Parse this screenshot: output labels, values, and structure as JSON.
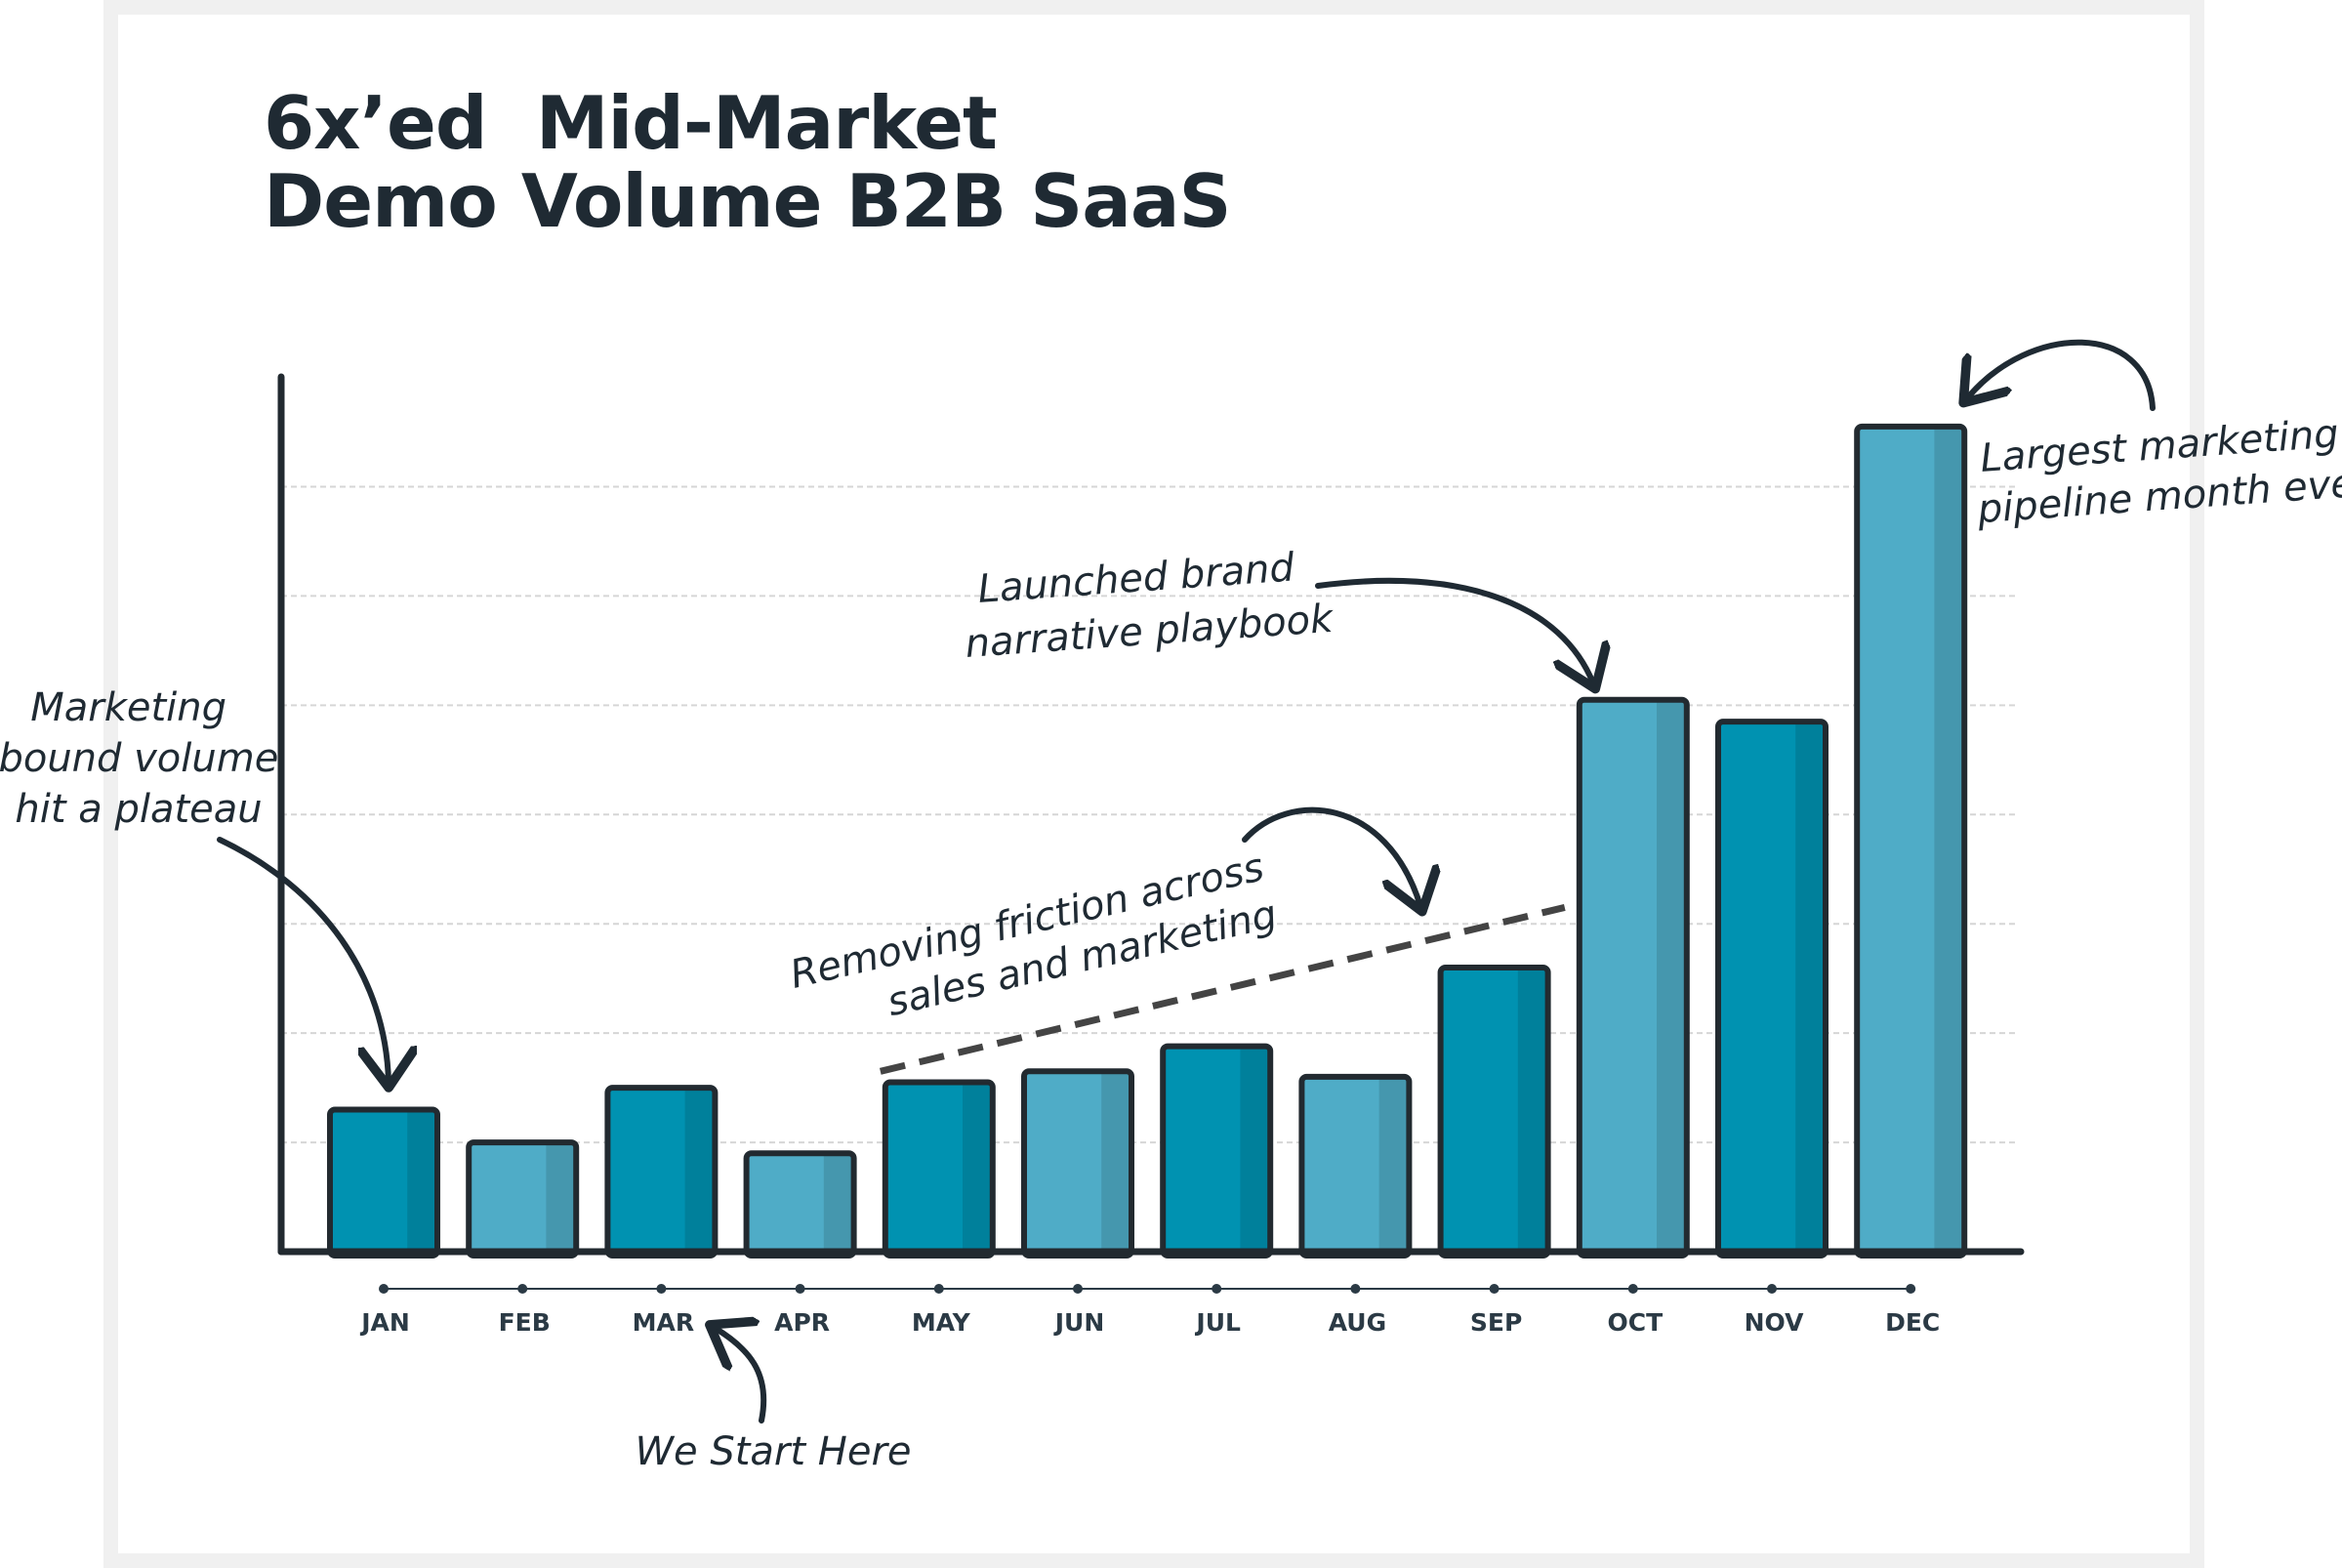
{
  "chart_data": {
    "type": "bar",
    "title": "6x’ed  Mid-Market\nDemo Volume B2B SaaS",
    "title_lines": [
      "6x’ed  Mid-Market",
      "Demo Volume B2B SaaS"
    ],
    "categories": [
      "JAN",
      "FEB",
      "MAR",
      "APR",
      "MAY",
      "JUN",
      "JUL",
      "AUG",
      "SEP",
      "OCT",
      "NOV",
      "DEC"
    ],
    "values": [
      1.3,
      1.0,
      1.5,
      0.9,
      1.55,
      1.65,
      1.88,
      1.6,
      2.6,
      5.05,
      4.85,
      7.55
    ],
    "ylim": [
      0,
      8
    ],
    "grid": true,
    "bar_colors": [
      "#0092b1",
      "#4facc7",
      "#0092b1",
      "#4facc7",
      "#0092b1",
      "#4facc7",
      "#0092b1",
      "#4facc7",
      "#0092b1",
      "#4facc7",
      "#0092b1",
      "#4facc7"
    ],
    "colors": {
      "dark_bar": "#0092b1",
      "light_bar": "#4facc7",
      "outline": "#222a30",
      "grid": "#d6d6d6",
      "dashed_trend": "#444444"
    },
    "annotations": [
      {
        "text_lines": [
          "Marketing",
          "inbound volume",
          "hit a plateau"
        ],
        "target": "JAN"
      },
      {
        "text_lines": [
          "We Start Here"
        ],
        "target": "MAR"
      },
      {
        "text_lines": [
          "Removing friction across",
          "sales and marketing"
        ],
        "target": "MAY-SEP trend"
      },
      {
        "text_lines": [
          "Launched brand",
          "narrative playbook"
        ],
        "target": "OCT"
      },
      {
        "text_lines": [
          "Largest marketing",
          "pipeline month ever"
        ],
        "target": "DEC"
      }
    ]
  }
}
